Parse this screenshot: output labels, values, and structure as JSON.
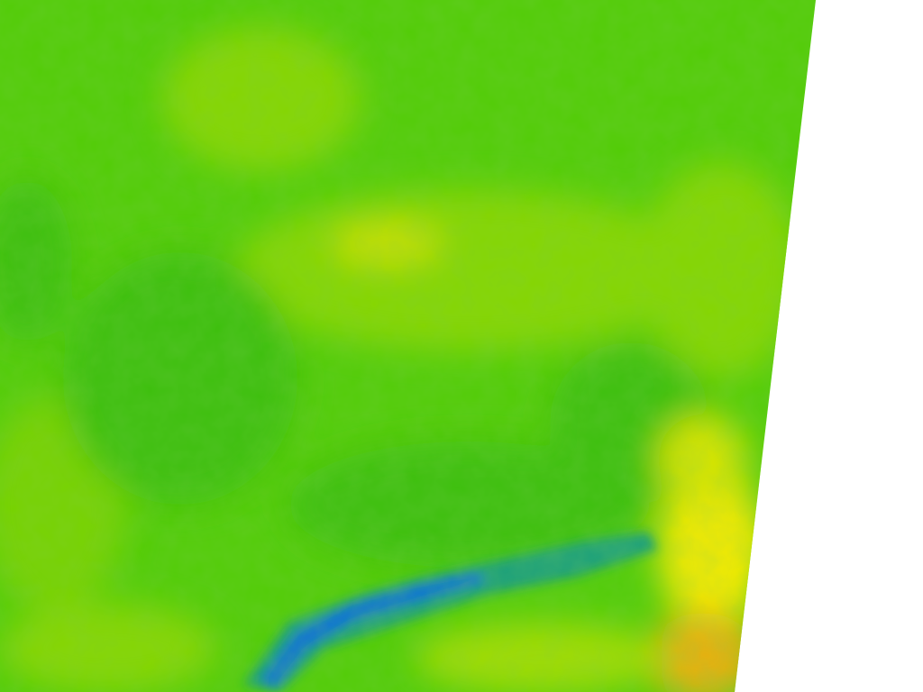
{
  "map": {
    "palette": {
      "low": "#0a6fd8",
      "low_mid": "#1aa07a",
      "mid_dark": "#3cbf10",
      "mid": "#52cc06",
      "mid_light": "#86d604",
      "high": "#d6e400",
      "higher": "#f4ea00",
      "highest": "#e8b010",
      "no_data": "#ffffff"
    }
  }
}
